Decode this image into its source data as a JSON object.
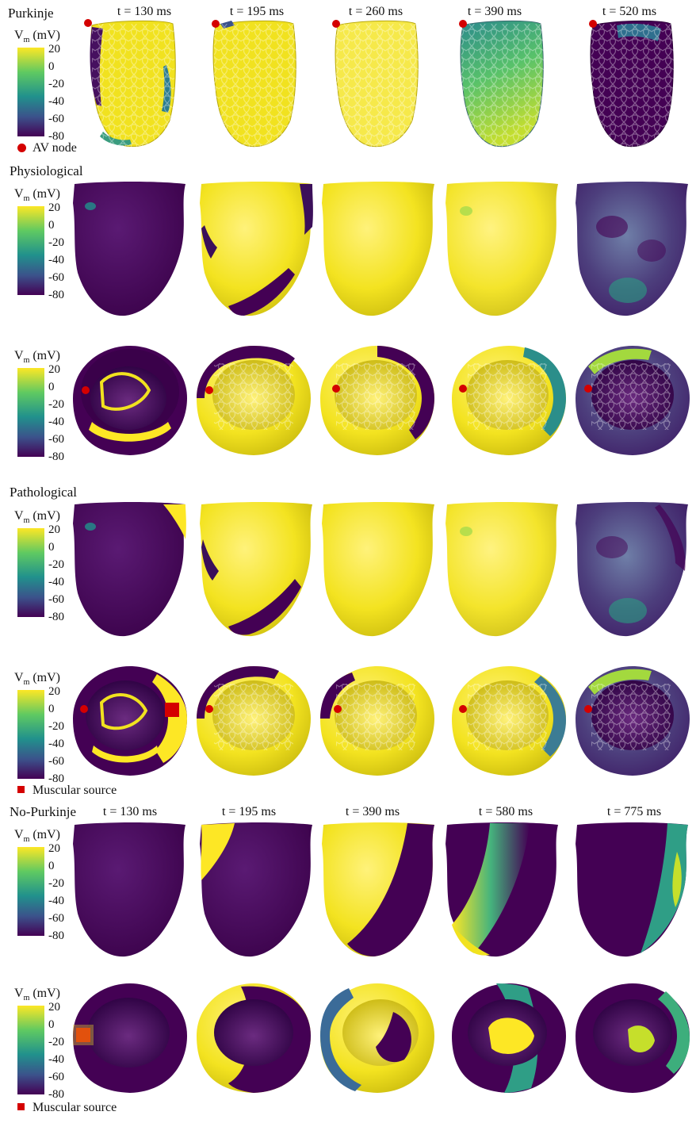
{
  "colorbar": {
    "title": "V",
    "title_sub": "m",
    "title_unit": " (mV)",
    "ticks": [
      "20",
      "0",
      "-20",
      "-40",
      "-60",
      "-80"
    ]
  },
  "sections": {
    "purkinje": "Purkinje",
    "physiological": "Physiological",
    "pathological": "Pathological",
    "no_purkinje": "No-Purkinje"
  },
  "times_top": [
    "t = 130 ms",
    "t = 195 ms",
    "t = 260 ms",
    "t = 390 ms",
    "t = 520 ms"
  ],
  "times_bottom": [
    "t = 130 ms",
    "t = 195 ms",
    "t = 390 ms",
    "t = 580 ms",
    "t = 775 ms"
  ],
  "legends": {
    "av_node": "AV node",
    "muscular_source_1": "Muscular source",
    "muscular_source_2": "Muscular source"
  },
  "colors": {
    "resting": "#440154",
    "depolarized": "#fde725",
    "mid": "#21918c",
    "marker": "#d40000"
  }
}
